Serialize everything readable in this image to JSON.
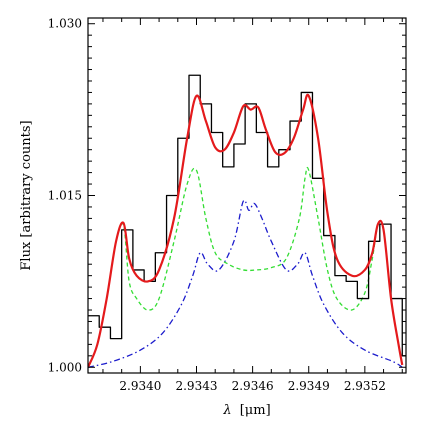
{
  "chart_data": {
    "type": "line",
    "title": "",
    "xlabel_symbol": "λ",
    "xlabel_unit": "[μm]",
    "ylabel": "Flux [arbitrary counts]",
    "xlim": [
      2.93372,
      2.93542
    ],
    "ylim": [
      0.9995,
      1.0305
    ],
    "x_ticks": [
      2.934,
      2.9343,
      2.9346,
      2.9349,
      2.9352
    ],
    "x_tick_labels": [
      "2.9340",
      "2.9343",
      "2.9346",
      "2.9349",
      "2.9352"
    ],
    "y_ticks": [
      1.0,
      1.015,
      1.03
    ],
    "y_tick_labels": [
      "1.000",
      "1.015",
      "1.030"
    ],
    "grid": false,
    "legend": "none",
    "series": [
      {
        "color": "#000000",
        "style": "step",
        "x": [
          2.93372,
          2.93378,
          2.93384,
          2.9339,
          2.93396,
          2.93402,
          2.93408,
          2.93414,
          2.9342,
          2.93426,
          2.93432,
          2.93438,
          2.93444,
          2.9345,
          2.93456,
          2.93462,
          2.93468,
          2.93474,
          2.9348,
          2.93486,
          2.93492,
          2.93498,
          2.93504,
          2.9351,
          2.93516,
          2.93522,
          2.93528,
          2.93534,
          2.9354
        ],
        "y": [
          1.0045,
          1.0035,
          1.0025,
          1.012,
          1.0085,
          1.0075,
          1.01,
          1.015,
          1.02,
          1.0255,
          1.023,
          1.0205,
          1.0175,
          1.0195,
          1.023,
          1.0205,
          1.0175,
          1.019,
          1.0215,
          1.024,
          1.0165,
          1.0115,
          1.008,
          1.0075,
          1.006,
          1.011,
          1.0125,
          1.006,
          1.001
        ]
      },
      {
        "color": "#e41a1c",
        "style": "solid",
        "x": [
          2.93372,
          2.93377,
          2.93382,
          2.93387,
          2.93391,
          2.93394,
          2.93398,
          2.93404,
          2.9341,
          2.93418,
          2.93425,
          2.9343,
          2.93435,
          2.9344,
          2.93445,
          2.9345,
          2.93455,
          2.93459,
          2.93463,
          2.93467,
          2.93472,
          2.93477,
          2.93482,
          2.93487,
          2.9349,
          2.93495,
          2.935,
          2.93505,
          2.93513,
          2.9352,
          2.93524,
          2.93527,
          2.9353,
          2.93534,
          2.93538,
          2.9354
        ],
        "y": [
          1.0,
          1.002,
          1.006,
          1.011,
          1.0126,
          1.0095,
          1.008,
          1.0075,
          1.0085,
          1.013,
          1.02,
          1.0237,
          1.0215,
          1.0192,
          1.019,
          1.0205,
          1.0228,
          1.0225,
          1.0227,
          1.0208,
          1.0188,
          1.0187,
          1.02,
          1.0225,
          1.0237,
          1.02,
          1.0135,
          1.0095,
          1.008,
          1.0085,
          1.01,
          1.0125,
          1.012,
          1.006,
          1.002,
          1.0002
        ]
      },
      {
        "color": "#33dd33",
        "style": "dashed",
        "x": [
          2.93372,
          2.93377,
          2.93382,
          2.93387,
          2.93391,
          2.93394,
          2.93398,
          2.93404,
          2.9341,
          2.93418,
          2.93425,
          2.9343,
          2.93435,
          2.9344,
          2.93447,
          2.93455,
          2.93462,
          2.9347,
          2.93478,
          2.93485,
          2.93488,
          2.9349,
          2.93495,
          2.935,
          2.93505,
          2.93513,
          2.9352,
          2.93524,
          2.93527,
          2.9353,
          2.93534,
          2.93538,
          2.9354
        ],
        "y": [
          1.0,
          1.002,
          1.006,
          1.011,
          1.0124,
          1.0075,
          1.006,
          1.005,
          1.006,
          1.011,
          1.016,
          1.0172,
          1.013,
          1.01,
          1.009,
          1.0085,
          1.0085,
          1.0087,
          1.0095,
          1.013,
          1.0165,
          1.0172,
          1.013,
          1.0085,
          1.006,
          1.005,
          1.0065,
          1.0095,
          1.0124,
          1.012,
          1.006,
          1.002,
          1.0002
        ]
      },
      {
        "color": "#1c1ccc",
        "style": "dashdot",
        "x": [
          2.93372,
          2.93385,
          2.934,
          2.93412,
          2.93422,
          2.93428,
          2.93432,
          2.93436,
          2.93442,
          2.9345,
          2.93455,
          2.93458,
          2.93461,
          2.93465,
          2.9347,
          2.93478,
          2.93484,
          2.93488,
          2.93492,
          2.93498,
          2.93508,
          2.9352,
          2.93535,
          2.9354
        ],
        "y": [
          1.0,
          1.0005,
          1.0015,
          1.003,
          1.0055,
          1.008,
          1.01,
          1.009,
          1.0085,
          1.011,
          1.0145,
          1.0137,
          1.0143,
          1.013,
          1.011,
          1.0085,
          1.009,
          1.01,
          1.008,
          1.0055,
          1.003,
          1.0015,
          1.0005,
          1.0
        ]
      }
    ]
  }
}
